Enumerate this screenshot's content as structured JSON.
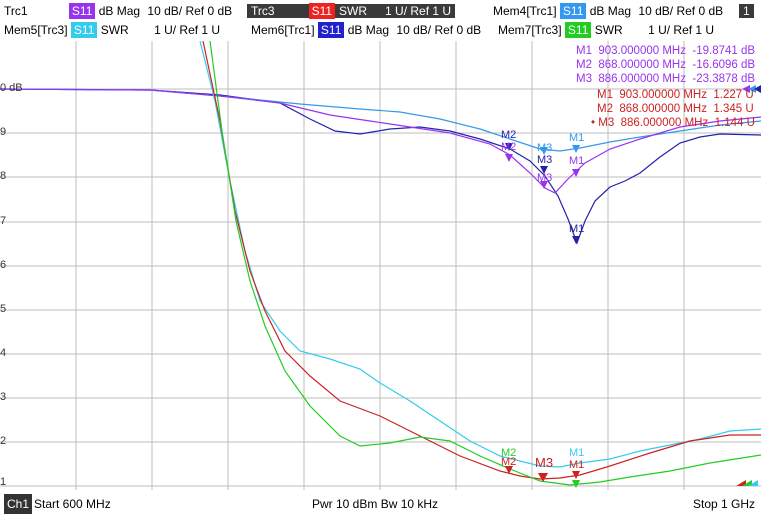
{
  "header": {
    "row1": {
      "trc1": {
        "label": "Trc1",
        "tag": "S11",
        "format": "dB Mag",
        "scale": "10 dB/ Ref 0 dB",
        "color": "#9933ee"
      },
      "trc3": {
        "label": "Trc3",
        "tag": "S11",
        "format": "SWR",
        "scale": "1 U/ Ref 1 U",
        "color": "#ee2222"
      },
      "mem4": {
        "label": "Mem4[Trc1]",
        "tag": "S11",
        "format": "dB Mag",
        "scale": "10 dB/ Ref 0 dB",
        "color": "#3399ee"
      },
      "channel_num": "1"
    },
    "row2": {
      "mem5": {
        "label": "Mem5[Trc3]",
        "tag": "S11",
        "format": "SWR",
        "scale": "1 U/ Ref 1 U",
        "color": "#33ccee"
      },
      "mem6": {
        "label": "Mem6[Trc1]",
        "tag": "S11",
        "format": "dB Mag",
        "scale": "10 dB/ Ref 0 dB",
        "color": "#2222cc"
      },
      "mem7": {
        "label": "Mem7[Trc3]",
        "tag": "S11",
        "format": "SWR",
        "scale": "1 U/ Ref 1 U",
        "color": "#22cc22"
      }
    }
  },
  "markers_trc1": [
    {
      "name": "M1",
      "freq": "903.000000",
      "unit": "MHz",
      "value": "-19.8741 dB"
    },
    {
      "name": "M2",
      "freq": "868.000000",
      "unit": "MHz",
      "value": "-16.6096 dB"
    },
    {
      "name": "M3",
      "freq": "886.000000",
      "unit": "MHz",
      "value": "-23.3878 dB"
    }
  ],
  "markers_trc3": [
    {
      "name": "M1",
      "freq": "903.000000",
      "unit": "MHz",
      "value": "1.227 U"
    },
    {
      "name": "M2",
      "freq": "868.000000",
      "unit": "MHz",
      "value": "1.345 U"
    },
    {
      "name": "M3",
      "freq": "886.000000",
      "unit": "MHz",
      "value": "1.144 U"
    }
  ],
  "y_axis_labels": [
    "0 dB",
    "9",
    "8",
    "7",
    "6",
    "5",
    "4",
    "3",
    "2",
    "1"
  ],
  "footer": {
    "channel": "Ch1",
    "start": "Start  600 MHz",
    "center": "Pwr  10 dBm  Bw  10 kHz",
    "stop": "Stop  1 GHz"
  },
  "marker_labels": {
    "m1": "M1",
    "m2": "M2",
    "m3": "M3"
  },
  "colors": {
    "trc1": "#9933ee",
    "trc3": "#cc2222",
    "mem4": "#3399ee",
    "mem5": "#33ccee",
    "mem6": "#2222aa",
    "mem7": "#22cc22",
    "grid": "#bbbbbb"
  }
}
